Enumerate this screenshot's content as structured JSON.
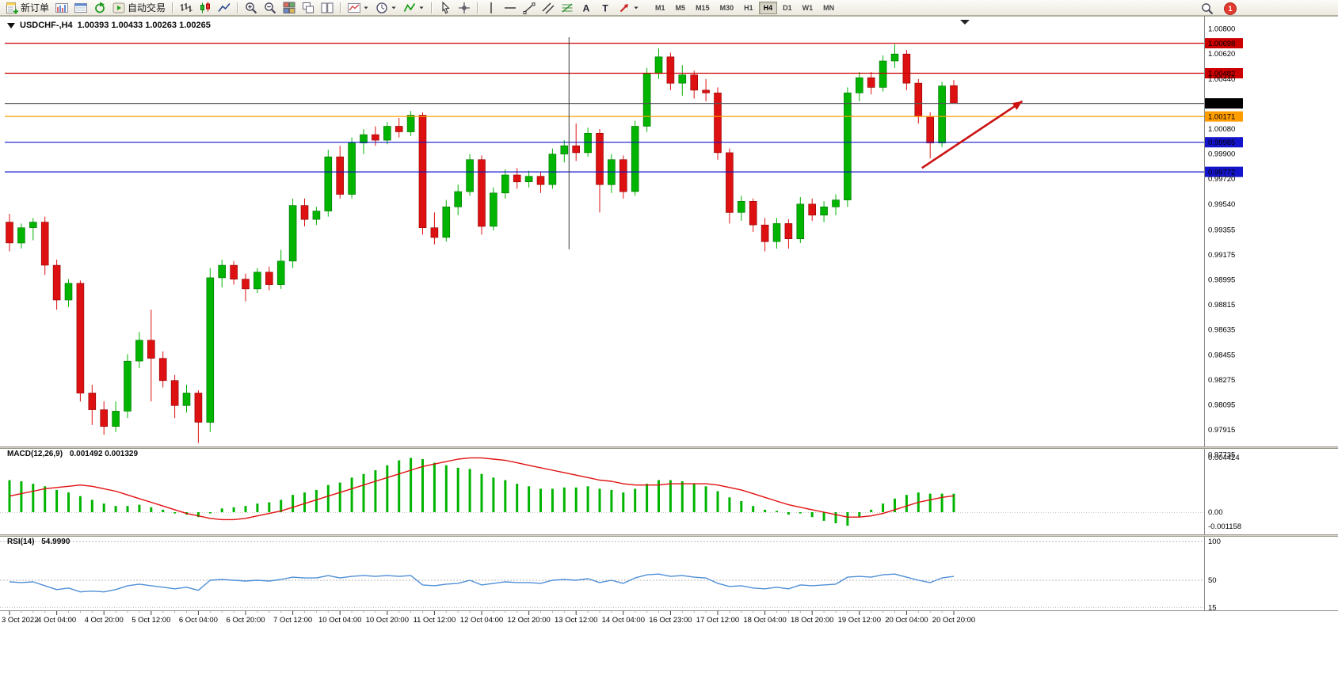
{
  "toolbar": {
    "buttons": [
      {
        "name": "new-order-button",
        "icon": "new-order",
        "label": "新订单"
      },
      {
        "name": "charts-window-button",
        "icon": "charts"
      },
      {
        "name": "profiles-button",
        "icon": "profile"
      },
      {
        "name": "refresh-button",
        "icon": "refresh"
      },
      {
        "name": "autotrading-button",
        "icon": "autotrade",
        "label": "自动交易"
      },
      {
        "sep": true
      },
      {
        "name": "bar-chart-button",
        "icon": "bars"
      },
      {
        "name": "candlestick-chart-button",
        "icon": "candles"
      },
      {
        "name": "line-chart-button",
        "icon": "linechart"
      },
      {
        "sep": true
      },
      {
        "name": "zoom-in-button",
        "icon": "zoom-in"
      },
      {
        "name": "zoom-out-button",
        "icon": "zoom-out"
      },
      {
        "name": "tile-windows-button",
        "icon": "tile"
      },
      {
        "name": "cascade-windows-button",
        "icon": "cascade"
      },
      {
        "name": "arrange-windows-button",
        "icon": "arrange"
      },
      {
        "sep": true
      },
      {
        "name": "new-chart-dropdown",
        "icon": "newchart",
        "dropdown": true
      },
      {
        "name": "periods-dropdown",
        "icon": "period",
        "dropdown": true
      },
      {
        "name": "indicators-dropdown",
        "icon": "indicators",
        "dropdown": true
      },
      {
        "sep": true
      },
      {
        "name": "cursor-button",
        "icon": "cursor"
      },
      {
        "name": "crosshair-button",
        "icon": "crosshair"
      },
      {
        "sep": true
      },
      {
        "name": "vertical-line-button",
        "icon": "vline"
      },
      {
        "name": "horizontal-line-button",
        "icon": "hline"
      },
      {
        "name": "trendline-button",
        "icon": "trendline"
      },
      {
        "name": "channel-button",
        "icon": "channel"
      },
      {
        "name": "fibonacci-button",
        "icon": "fibo"
      },
      {
        "name": "text-button",
        "icon": "text",
        "glyph": "A"
      },
      {
        "name": "label-button",
        "icon": "label",
        "glyph": "T"
      },
      {
        "name": "arrows-dropdown",
        "icon": "arrows",
        "dropdown": true
      }
    ],
    "timeframes": [
      "M1",
      "M5",
      "M15",
      "M30",
      "H1",
      "H4",
      "D1",
      "W1",
      "MN"
    ],
    "active_timeframe": "H4",
    "notification_count": "1"
  },
  "chart": {
    "symbol_period": "USDCHF-,H4",
    "ohlc": "1.00393 1.00433 1.00263 1.00265"
  },
  "indicators": {
    "macd": {
      "label": "MACD(12,26,9)",
      "values": "0.001492 0.001329"
    },
    "rsi": {
      "label": "RSI(14)",
      "values": "54.9990"
    }
  },
  "chart_data": {
    "type": "candlestick",
    "symbol": "USDCHF-",
    "period": "H4",
    "current_bar": {
      "open": 1.00393,
      "high": 1.00433,
      "low": 1.00263,
      "close": 1.00265
    },
    "price_axis": [
      1.008,
      1.0062,
      1.0044,
      1.0008,
      0.999,
      0.9972,
      0.9954,
      0.99355,
      0.99175,
      0.98995,
      0.98815,
      0.98635,
      0.98455,
      0.98275,
      0.98095,
      0.97915,
      0.97735
    ],
    "levels": [
      {
        "price": 1.00698,
        "label": "1.00698",
        "color": "#cc0000"
      },
      {
        "price": 1.00482,
        "label": "1.00482",
        "color": "#cc0000"
      },
      {
        "price": 1.00265,
        "label": "1.00265",
        "color": "#000000",
        "line_color": "#55555c"
      },
      {
        "price": 1.00171,
        "label": "1.00171",
        "color": "#ff9d00"
      },
      {
        "price": 0.99985,
        "label": "0.99985",
        "color": "#1414cc"
      },
      {
        "price": 0.99772,
        "label": "0.99772",
        "color": "#1414cc"
      }
    ],
    "time_labels": [
      "3 Oct 2022",
      "4 Oct 04:00",
      "4 Oct 20:00",
      "5 Oct 12:00",
      "6 Oct 04:00",
      "6 Oct 20:00",
      "7 Oct 12:00",
      "10 Oct 04:00",
      "10 Oct 20:00",
      "11 Oct 12:00",
      "12 Oct 04:00",
      "12 Oct 20:00",
      "13 Oct 12:00",
      "14 Oct 04:00",
      "16 Oct 23:00",
      "17 Oct 12:00",
      "18 Oct 04:00",
      "18 Oct 20:00",
      "19 Oct 12:00",
      "20 Oct 04:00",
      "20 Oct 20:00"
    ],
    "candles": [
      [
        0.9941,
        0.9947,
        0.992,
        0.9926
      ],
      [
        0.9926,
        0.994,
        0.9922,
        0.9937
      ],
      [
        0.9937,
        0.9944,
        0.9928,
        0.9941
      ],
      [
        0.9941,
        0.9945,
        0.9903,
        0.991
      ],
      [
        0.991,
        0.9914,
        0.9878,
        0.9885
      ],
      [
        0.9885,
        0.99,
        0.988,
        0.9897
      ],
      [
        0.9897,
        0.9899,
        0.9812,
        0.9818
      ],
      [
        0.9818,
        0.9824,
        0.9795,
        0.9806
      ],
      [
        0.9806,
        0.9812,
        0.9788,
        0.9794
      ],
      [
        0.9794,
        0.9812,
        0.979,
        0.9805
      ],
      [
        0.9805,
        0.9846,
        0.98,
        0.9841
      ],
      [
        0.9841,
        0.9862,
        0.9836,
        0.9856
      ],
      [
        0.9856,
        0.9878,
        0.9812,
        0.9843
      ],
      [
        0.9843,
        0.9848,
        0.9822,
        0.9827
      ],
      [
        0.9827,
        0.9831,
        0.98,
        0.9809
      ],
      [
        0.9809,
        0.9824,
        0.9804,
        0.9818
      ],
      [
        0.9818,
        0.982,
        0.9782,
        0.9797
      ],
      [
        0.9797,
        0.9908,
        0.979,
        0.9901
      ],
      [
        0.9901,
        0.9914,
        0.9894,
        0.991
      ],
      [
        0.991,
        0.9913,
        0.9896,
        0.99
      ],
      [
        0.99,
        0.9904,
        0.9884,
        0.9893
      ],
      [
        0.9893,
        0.9908,
        0.989,
        0.9905
      ],
      [
        0.9905,
        0.9909,
        0.9892,
        0.9896
      ],
      [
        0.9896,
        0.9921,
        0.9893,
        0.9913
      ],
      [
        0.9913,
        0.9958,
        0.9908,
        0.9953
      ],
      [
        0.9953,
        0.9958,
        0.9938,
        0.9943
      ],
      [
        0.9943,
        0.9952,
        0.9939,
        0.9949
      ],
      [
        0.9949,
        0.9993,
        0.9945,
        0.9988
      ],
      [
        0.9988,
        0.9996,
        0.9958,
        0.9961
      ],
      [
        0.9961,
        1.0002,
        0.9958,
        0.9998
      ],
      [
        0.9998,
        1.0008,
        0.999,
        1.0004
      ],
      [
        1.0004,
        1.001,
        0.9996,
        1.0
      ],
      [
        1.0,
        1.0013,
        0.9997,
        1.001
      ],
      [
        1.001,
        1.0016,
        1.0002,
        1.0006
      ],
      [
        1.0006,
        1.0021,
        1.0003,
        1.0018
      ],
      [
        1.0018,
        1.002,
        0.9932,
        0.9937
      ],
      [
        0.9937,
        0.9948,
        0.9925,
        0.993
      ],
      [
        0.993,
        0.9957,
        0.9927,
        0.9952
      ],
      [
        0.9952,
        0.9968,
        0.9946,
        0.9963
      ],
      [
        0.9963,
        0.999,
        0.996,
        0.9986
      ],
      [
        0.9986,
        0.9989,
        0.9932,
        0.9938
      ],
      [
        0.9938,
        0.9966,
        0.9935,
        0.9962
      ],
      [
        0.9962,
        0.9979,
        0.9958,
        0.9975
      ],
      [
        0.9975,
        0.998,
        0.9965,
        0.997
      ],
      [
        0.997,
        0.9978,
        0.9966,
        0.9974
      ],
      [
        0.9974,
        0.9977,
        0.9962,
        0.9968
      ],
      [
        0.9968,
        0.9994,
        0.9965,
        0.999
      ],
      [
        0.999,
        1.0,
        0.9984,
        0.9996
      ],
      [
        0.9996,
        1.0012,
        0.9985,
        0.9991
      ],
      [
        0.9991,
        1.0009,
        0.9988,
        1.0005
      ],
      [
        1.0005,
        1.0008,
        0.9948,
        0.9968
      ],
      [
        0.9968,
        0.999,
        0.9962,
        0.9986
      ],
      [
        0.9986,
        0.9989,
        0.9958,
        0.9963
      ],
      [
        0.9963,
        1.0014,
        0.996,
        1.001
      ],
      [
        1.001,
        1.0052,
        1.0006,
        1.0048
      ],
      [
        1.0048,
        1.0066,
        1.0044,
        1.006
      ],
      [
        1.006,
        1.0063,
        1.0036,
        1.0041
      ],
      [
        1.0041,
        1.0054,
        1.0032,
        1.0047
      ],
      [
        1.0047,
        1.005,
        1.003,
        1.0036
      ],
      [
        1.0036,
        1.0044,
        1.0028,
        1.0034
      ],
      [
        1.0034,
        1.0038,
        0.9986,
        0.9991
      ],
      [
        0.9991,
        0.9994,
        0.994,
        0.9948
      ],
      [
        0.9948,
        0.996,
        0.9942,
        0.9956
      ],
      [
        0.9956,
        0.9958,
        0.9934,
        0.9939
      ],
      [
        0.9939,
        0.9944,
        0.992,
        0.9927
      ],
      [
        0.9927,
        0.9944,
        0.9922,
        0.994
      ],
      [
        0.994,
        0.9943,
        0.9922,
        0.9929
      ],
      [
        0.9929,
        0.9959,
        0.9926,
        0.9954
      ],
      [
        0.9954,
        0.9958,
        0.9942,
        0.9946
      ],
      [
        0.9946,
        0.9956,
        0.9941,
        0.9952
      ],
      [
        0.9952,
        0.9961,
        0.9946,
        0.9957
      ],
      [
        0.9957,
        1.0038,
        0.9952,
        1.0034
      ],
      [
        1.0034,
        1.0049,
        1.0028,
        1.0045
      ],
      [
        1.0045,
        1.0049,
        1.0033,
        1.0038
      ],
      [
        1.0038,
        1.0061,
        1.0035,
        1.0057
      ],
      [
        1.0057,
        1.0069,
        1.0052,
        1.0062
      ],
      [
        1.0062,
        1.0065,
        1.0036,
        1.0041
      ],
      [
        1.0041,
        1.0044,
        1.0012,
        1.0017
      ],
      [
        1.0017,
        1.002,
        0.9987,
        0.9998
      ],
      [
        0.9998,
        1.0042,
        0.9995,
        1.0039
      ],
      [
        1.00393,
        1.00433,
        1.00263,
        1.00265
      ]
    ],
    "macd": {
      "histogram": [
        0.0026,
        0.0025,
        0.0023,
        0.0021,
        0.0018,
        0.0016,
        0.0013,
        0.001,
        0.0007,
        0.0005,
        0.0005,
        0.0006,
        0.0004,
        0.0002,
        -0.0001,
        -0.0002,
        -0.0004,
        -0.0001,
        0.0003,
        0.0004,
        0.0005,
        0.0007,
        0.0008,
        0.001,
        0.0014,
        0.0016,
        0.0018,
        0.0022,
        0.0024,
        0.0028,
        0.0031,
        0.0034,
        0.0038,
        0.0042,
        0.0044,
        0.0043,
        0.004,
        0.0038,
        0.0036,
        0.0035,
        0.0031,
        0.0028,
        0.0026,
        0.0023,
        0.0021,
        0.0019,
        0.0019,
        0.002,
        0.002,
        0.0021,
        0.0019,
        0.0018,
        0.0016,
        0.0019,
        0.0023,
        0.0026,
        0.0026,
        0.0025,
        0.0023,
        0.0021,
        0.0017,
        0.0012,
        0.0009,
        0.0005,
        0.0002,
        0.0001,
        -0.0002,
        -0.0001,
        -0.0004,
        -0.0007,
        -0.0009,
        -0.0011,
        -0.0004,
        0.0002,
        0.0007,
        0.0011,
        0.0014,
        0.0016,
        0.0015,
        0.0015,
        0.001492
      ],
      "signal": [
        0.0013,
        0.0015,
        0.0017,
        0.0019,
        0.002,
        0.0021,
        0.0022,
        0.0021,
        0.0019,
        0.0017,
        0.0014,
        0.0011,
        0.0008,
        0.0005,
        0.0002,
        -0.0001,
        -0.0003,
        -0.0005,
        -0.0006,
        -0.0006,
        -0.0005,
        -0.0003,
        -0.0001,
        0.0001,
        0.0004,
        0.0007,
        0.001,
        0.0013,
        0.0016,
        0.0019,
        0.0022,
        0.0025,
        0.0028,
        0.0031,
        0.0034,
        0.0037,
        0.0039,
        0.0041,
        0.0043,
        0.0044,
        0.0044,
        0.0043,
        0.0042,
        0.004,
        0.0038,
        0.0036,
        0.0034,
        0.0032,
        0.003,
        0.0028,
        0.0026,
        0.0025,
        0.0023,
        0.0022,
        0.0022,
        0.0022,
        0.0023,
        0.0023,
        0.0023,
        0.0023,
        0.0022,
        0.002,
        0.0018,
        0.0015,
        0.0012,
        0.0009,
        0.0006,
        0.0004,
        0.0002,
        0.0,
        -0.0002,
        -0.0004,
        -0.0004,
        -0.0003,
        -0.0001,
        0.0002,
        0.0005,
        0.0008,
        0.001,
        0.0012,
        0.001329
      ],
      "axis": [
        {
          "value": 0.004424,
          "label": "0.004424"
        },
        {
          "value": 0,
          "label": "0.00"
        },
        {
          "value": -0.001158,
          "label": "-0.001158"
        }
      ]
    },
    "rsi": {
      "series": [
        48,
        47,
        48,
        43,
        38,
        40,
        35,
        36,
        35,
        38,
        43,
        45,
        43,
        41,
        39,
        41,
        37,
        50,
        51,
        50,
        49,
        50,
        49,
        51,
        54,
        53,
        53,
        56,
        53,
        55,
        56,
        55,
        56,
        55,
        56,
        44,
        43,
        45,
        46,
        50,
        44,
        46,
        48,
        47,
        47,
        46,
        50,
        51,
        50,
        52,
        47,
        50,
        46,
        53,
        57,
        58,
        55,
        56,
        54,
        53,
        46,
        42,
        43,
        40,
        39,
        41,
        39,
        44,
        43,
        44,
        45,
        54,
        55,
        54,
        57,
        58,
        54,
        50,
        47,
        53,
        54.999
      ],
      "axis": [
        {
          "value": 100,
          "label": "100"
        },
        {
          "value": 50,
          "label": "50"
        },
        {
          "value": 15,
          "label": "15"
        }
      ]
    },
    "annotations": {
      "vertical_line": {
        "bar": 47.4,
        "price_top": 1.00741,
        "price_bottom": 0.99215
      },
      "arrow": {
        "from_bar": 77.3,
        "from_price": 0.998,
        "to_bar": 85.8,
        "to_price": 1.0028
      }
    },
    "colors": {
      "bull": "#00b400",
      "bear": "#dd1111",
      "macd_histogram": "#00b400",
      "macd_signal": "#e01010",
      "rsi": "#4f8fd6",
      "arrow": "#cc1111"
    }
  }
}
